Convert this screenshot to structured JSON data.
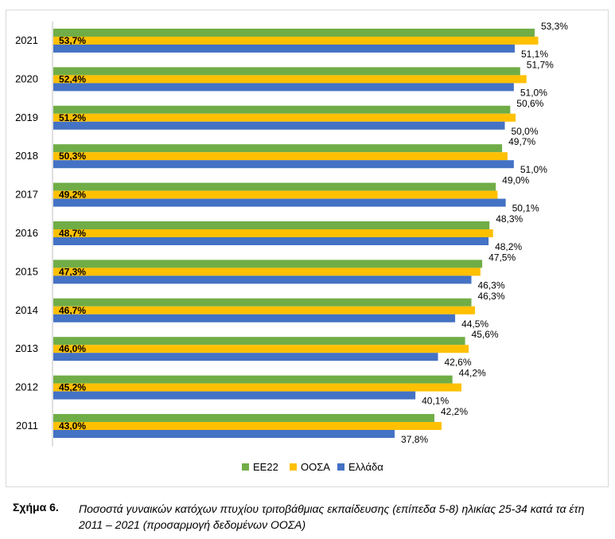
{
  "chart_data": {
    "type": "bar",
    "orientation": "horizontal",
    "categories": [
      "2021",
      "2020",
      "2019",
      "2018",
      "2017",
      "2016",
      "2015",
      "2014",
      "2013",
      "2012",
      "2011"
    ],
    "series": [
      {
        "name": "ΕΕ22",
        "color": "#70ad47",
        "values": [
          53.3,
          51.7,
          50.6,
          49.7,
          49.0,
          48.3,
          47.5,
          46.3,
          45.6,
          44.2,
          42.2
        ],
        "labels": [
          "53,3%",
          "51,7%",
          "50,6%",
          "49,7%",
          "49,0%",
          "48,3%",
          "47,5%",
          "46,3%",
          "45,6%",
          "44,2%",
          "42,2%"
        ]
      },
      {
        "name": "ΟΟΣΑ",
        "color": "#ffc000",
        "values": [
          53.7,
          52.4,
          51.2,
          50.3,
          49.2,
          48.7,
          47.3,
          46.7,
          46.0,
          45.2,
          43.0
        ],
        "labels": [
          "53,7%",
          "52,4%",
          "51,2%",
          "50,3%",
          "49,2%",
          "48,7%",
          "47,3%",
          "46,7%",
          "46,0%",
          "45,2%",
          "43,0%"
        ]
      },
      {
        "name": "Ελλάδα",
        "color": "#4472c4",
        "values": [
          51.1,
          51.0,
          50.0,
          51.0,
          50.1,
          48.2,
          46.3,
          44.5,
          42.6,
          40.1,
          37.8
        ],
        "labels": [
          "51,1%",
          "51,0%",
          "50,0%",
          "51,0%",
          "50,1%",
          "48,2%",
          "46,3%",
          "44,5%",
          "42,6%",
          "40,1%",
          "37,8%"
        ]
      }
    ],
    "xlim": [
      0,
      54
    ],
    "grid": false,
    "legend_position": "bottom"
  },
  "caption": {
    "number": "Σχήμα 6.",
    "text": "Ποσοστά γυναικών κατόχων πτυχίου τριτοβάθμιας εκπαίδευσης (επίπεδα 5-8) ηλικίας 25-34 κατά τα έτη 2011 – 2021 (προσαρμογή δεδομένων ΟΟΣΑ)"
  }
}
